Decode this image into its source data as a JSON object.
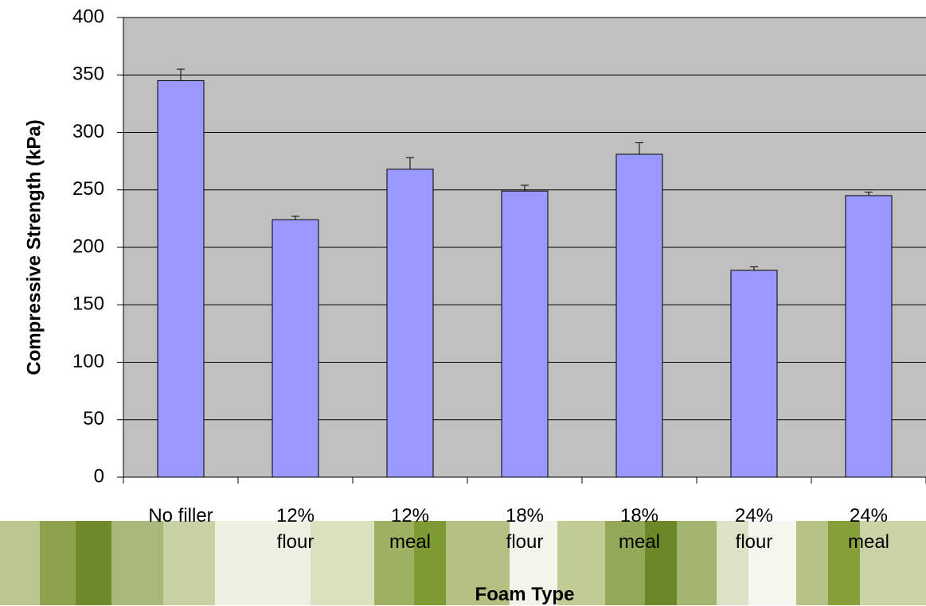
{
  "chart_data": {
    "type": "bar",
    "x_label": "Foam Type",
    "y_label": "Compressive Strength (kPa)",
    "categories": [
      "No filler",
      "12%\nflour",
      "12%\nmeal",
      "18%\nflour",
      "18%\nmeal",
      "24%\nflour",
      "24%\nmeal"
    ],
    "values": [
      345,
      224,
      268,
      249,
      281,
      180,
      245
    ],
    "errors": [
      10,
      3,
      10,
      5,
      10,
      3,
      3
    ],
    "color": "#9999ff",
    "ylim": [
      0,
      400
    ],
    "yticks": [
      0,
      50,
      100,
      150,
      200,
      250,
      300,
      350,
      400
    ],
    "grid": true
  }
}
